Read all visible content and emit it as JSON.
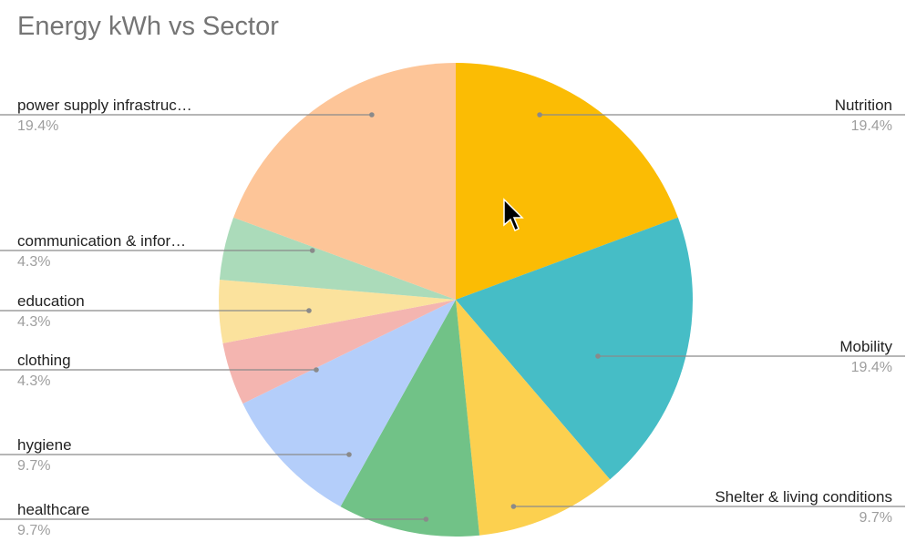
{
  "chart_data": {
    "type": "pie",
    "title": "Energy kWh vs Sector",
    "slices": [
      {
        "label": "Nutrition",
        "display_label": "Nutrition",
        "percent_label": "19.4%",
        "value": 19.4,
        "color": "#FBBC04"
      },
      {
        "label": "Mobility",
        "display_label": "Mobility",
        "percent_label": "19.4%",
        "value": 19.4,
        "color": "#46BDC6"
      },
      {
        "label": "Shelter & living conditions",
        "display_label": "Shelter & living conditions",
        "percent_label": "9.7%",
        "value": 9.7,
        "color": "#FCD04F"
      },
      {
        "label": "healthcare",
        "display_label": "healthcare",
        "percent_label": "9.7%",
        "value": 9.7,
        "color": "#71C287"
      },
      {
        "label": "hygiene",
        "display_label": "hygiene",
        "percent_label": "9.7%",
        "value": 9.7,
        "color": "#B4CEFA"
      },
      {
        "label": "clothing",
        "display_label": "clothing",
        "percent_label": "4.3%",
        "value": 4.3,
        "color": "#F4B5B0"
      },
      {
        "label": "education",
        "display_label": "education",
        "percent_label": "4.3%",
        "value": 4.3,
        "color": "#FBE29D"
      },
      {
        "label": "communication & information",
        "display_label": "communication & infor…",
        "percent_label": "4.3%",
        "value": 4.3,
        "color": "#ABDBBA"
      },
      {
        "label": "power supply infrastructure",
        "display_label": "power supply infrastruc…",
        "percent_label": "19.4%",
        "value": 19.4,
        "color": "#FDC598"
      }
    ],
    "legend": "none"
  }
}
